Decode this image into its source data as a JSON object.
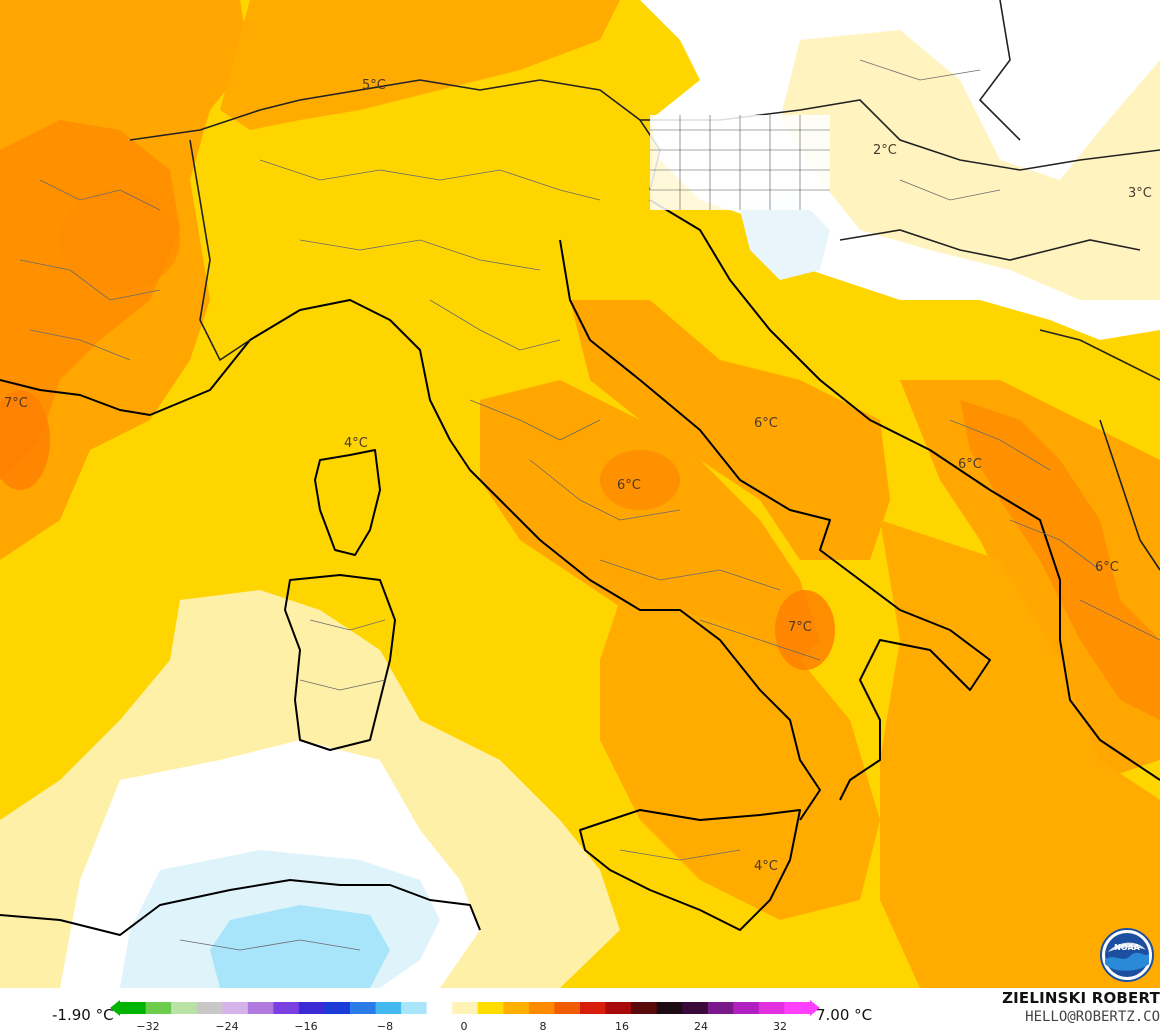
{
  "map": {
    "labels": [
      {
        "text": "5°C"
      },
      {
        "text": "2°C"
      },
      {
        "text": "3°C"
      },
      {
        "text": "7°C"
      },
      {
        "text": "4°C"
      },
      {
        "text": "6°C"
      },
      {
        "text": "6°C"
      },
      {
        "text": "6°C"
      },
      {
        "text": "6°C"
      },
      {
        "text": "7°C"
      },
      {
        "text": "4°C"
      }
    ]
  },
  "legend": {
    "min_label": "-1.90 °C",
    "max_label": "7.00 °C",
    "ticks": [
      "−32",
      "−24",
      "−16",
      "−8",
      "0",
      "8",
      "16",
      "24",
      "32"
    ],
    "colors": [
      "#00b400",
      "#6ccc4c",
      "#b8e2a6",
      "#c8c8c8",
      "#d4b4e8",
      "#b07ae0",
      "#7a3fe0",
      "#3c2ad4",
      "#1a3cd8",
      "#2a7ce8",
      "#46b8f0",
      "#a8e4fa",
      "#ffffff",
      "#fff3b8",
      "#ffdc00",
      "#ffb000",
      "#ff8a00",
      "#f25c00",
      "#d81e0a",
      "#a80a0a",
      "#5a0a0a",
      "#1c0a14",
      "#3a0a3a",
      "#7a1a8a",
      "#b020c0",
      "#e030e0",
      "#ff40ff"
    ]
  },
  "credit": {
    "name": "ZIELINSKI ROBERT",
    "email": "HELLO@ROBERTZ.CO"
  },
  "logo": {
    "text": "NOAA"
  }
}
